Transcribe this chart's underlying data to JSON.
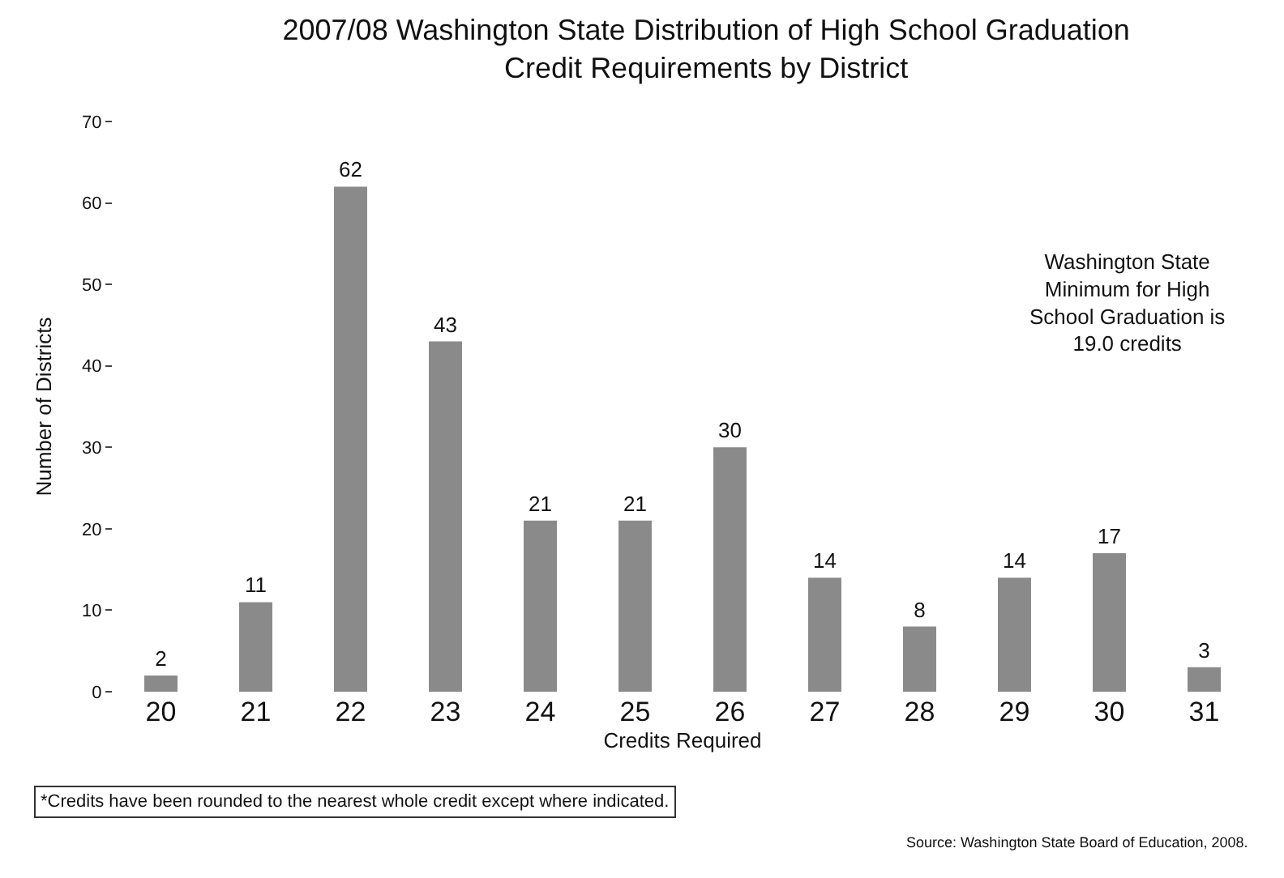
{
  "chart_data": {
    "type": "bar",
    "title": "2007/08 Washington State Distribution of High School Graduation\nCredit Requirements by District",
    "xlabel": "Credits Required",
    "ylabel": "Number of Districts",
    "categories": [
      "20",
      "21",
      "22",
      "23",
      "24",
      "25",
      "26",
      "27",
      "28",
      "29",
      "30",
      "31"
    ],
    "values": [
      2,
      11,
      62,
      43,
      21,
      21,
      30,
      14,
      8,
      14,
      17,
      3
    ],
    "color": "#8a8a8a",
    "ylim": [
      0,
      70
    ],
    "yticks": [
      0,
      10,
      20,
      30,
      40,
      50,
      60,
      70
    ],
    "legend": false,
    "data_labels": true,
    "annotations": [
      "Washington State\nMinimum for High\nSchool Graduation is\n19.0 credits",
      "*Credits have been rounded to the nearest whole credit except where indicated.",
      "Source: Washington State Board of Education, 2008."
    ]
  }
}
